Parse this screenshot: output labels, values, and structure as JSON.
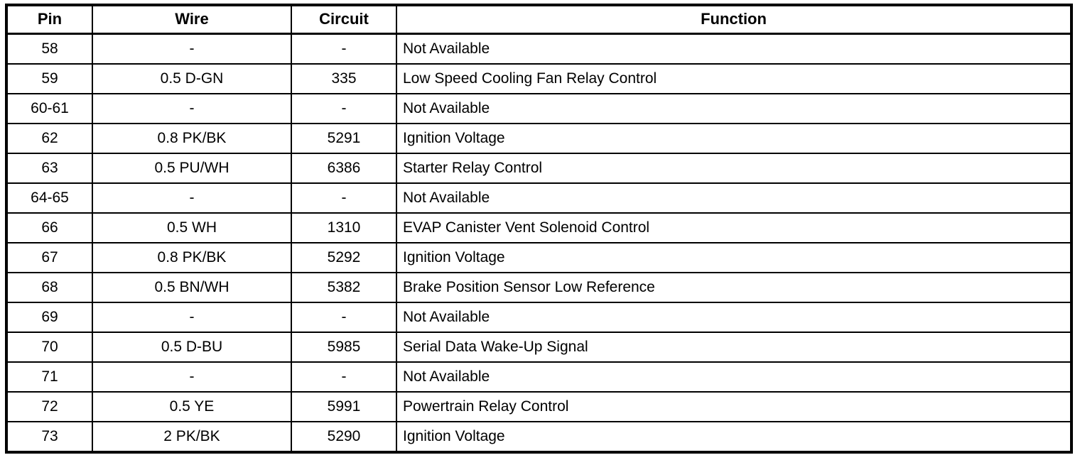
{
  "table": {
    "headers": {
      "pin": "Pin",
      "wire": "Wire",
      "circuit": "Circuit",
      "function": "Function"
    },
    "rows": [
      {
        "pin": "58",
        "wire": "-",
        "circuit": "-",
        "function": "Not Available"
      },
      {
        "pin": "59",
        "wire": "0.5 D-GN",
        "circuit": "335",
        "function": "Low Speed Cooling Fan Relay Control"
      },
      {
        "pin": "60-61",
        "wire": "-",
        "circuit": "-",
        "function": "Not Available"
      },
      {
        "pin": "62",
        "wire": "0.8 PK/BK",
        "circuit": "5291",
        "function": "Ignition Voltage"
      },
      {
        "pin": "63",
        "wire": "0.5 PU/WH",
        "circuit": "6386",
        "function": "Starter Relay Control"
      },
      {
        "pin": "64-65",
        "wire": "-",
        "circuit": "-",
        "function": "Not Available"
      },
      {
        "pin": "66",
        "wire": "0.5 WH",
        "circuit": "1310",
        "function": "EVAP Canister Vent Solenoid Control"
      },
      {
        "pin": "67",
        "wire": "0.8 PK/BK",
        "circuit": "5292",
        "function": "Ignition Voltage"
      },
      {
        "pin": "68",
        "wire": "0.5 BN/WH",
        "circuit": "5382",
        "function": "Brake Position Sensor Low Reference"
      },
      {
        "pin": "69",
        "wire": "-",
        "circuit": "-",
        "function": "Not Available"
      },
      {
        "pin": "70",
        "wire": "0.5 D-BU",
        "circuit": "5985",
        "function": "Serial Data Wake-Up Signal"
      },
      {
        "pin": "71",
        "wire": "-",
        "circuit": "-",
        "function": "Not Available"
      },
      {
        "pin": "72",
        "wire": "0.5 YE",
        "circuit": "5991",
        "function": "Powertrain Relay Control"
      },
      {
        "pin": "73",
        "wire": "2 PK/BK",
        "circuit": "5290",
        "function": "Ignition Voltage"
      }
    ],
    "colors": {
      "border": "#000000",
      "text": "#000000",
      "background": "#ffffff"
    }
  }
}
